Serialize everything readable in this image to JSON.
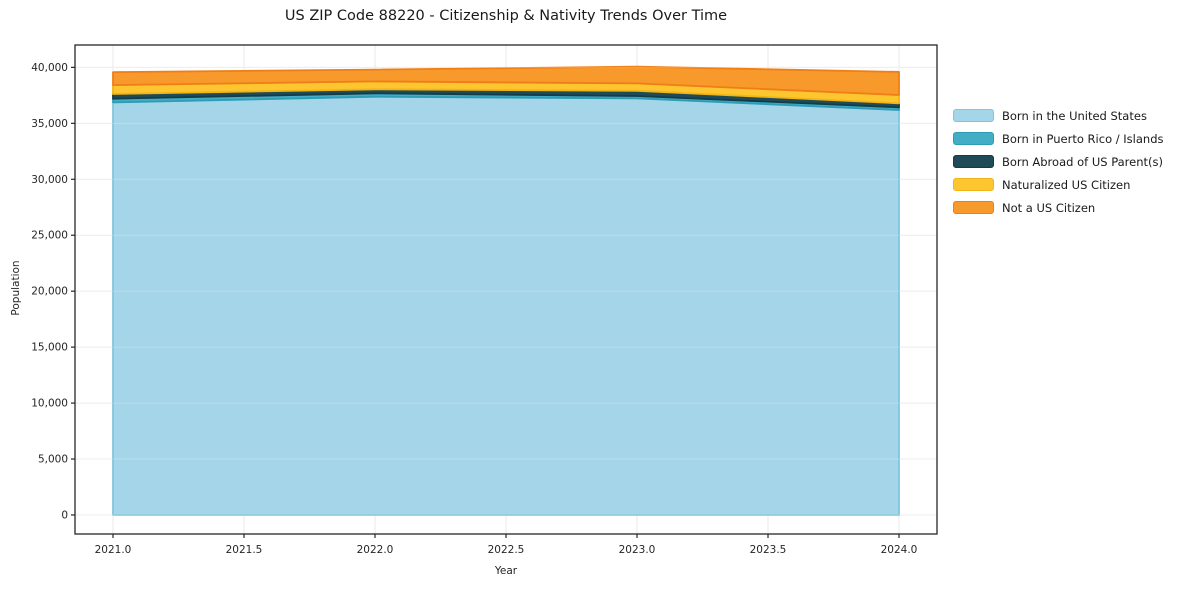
{
  "title": "US ZIP Code 88220 - Citizenship & Nativity Trends Over Time",
  "chart_data": {
    "type": "area",
    "stacked": true,
    "title": "US ZIP Code 88220 - Citizenship & Nativity Trends Over Time",
    "xlabel": "Year",
    "ylabel": "Population",
    "x": [
      2021,
      2022,
      2023,
      2024
    ],
    "series": [
      {
        "name": "Born in the United States",
        "values": [
          36870,
          37380,
          37230,
          36190
        ],
        "fill": "#a5d5e8",
        "edge": "#82c4dd"
      },
      {
        "name": "Born in Puerto Rico / Islands",
        "values": [
          330,
          300,
          210,
          240
        ],
        "fill": "#42adc4",
        "edge": "#2d9db6"
      },
      {
        "name": "Born Abroad of US Parent(s)",
        "values": [
          420,
          360,
          470,
          360
        ],
        "fill": "#1f4b59",
        "edge": "#133c49"
      },
      {
        "name": "Naturalized US Citizen",
        "values": [
          800,
          710,
          660,
          740
        ],
        "fill": "#fdc52f",
        "edge": "#f3b414"
      },
      {
        "name": "Not a US Citizen",
        "values": [
          1160,
          1050,
          1490,
          2070
        ],
        "fill": "#f8992b",
        "edge": "#ef7e16"
      }
    ],
    "xlim": [
      2020.855,
      2024.145
    ],
    "ylim": [
      -1700,
      42000
    ],
    "xticks": [
      "2021.0",
      "2021.5",
      "2022.0",
      "2022.5",
      "2023.0",
      "2023.5",
      "2024.0"
    ],
    "xtick_values": [
      2021,
      2021.5,
      2022,
      2022.5,
      2023,
      2023.5,
      2024
    ],
    "yticks": [
      "0",
      "5,000",
      "10,000",
      "15,000",
      "20,000",
      "25,000",
      "30,000",
      "35,000",
      "40,000"
    ],
    "ytick_values": [
      0,
      5000,
      10000,
      15000,
      20000,
      25000,
      30000,
      35000,
      40000
    ],
    "grid": true,
    "legend_position": "right-outside",
    "colors": {
      "grid": "#e9e9e9",
      "spine": "#262626",
      "tick_label": "#262626",
      "text": "#1a1a1a",
      "background": "#ffffff"
    }
  }
}
